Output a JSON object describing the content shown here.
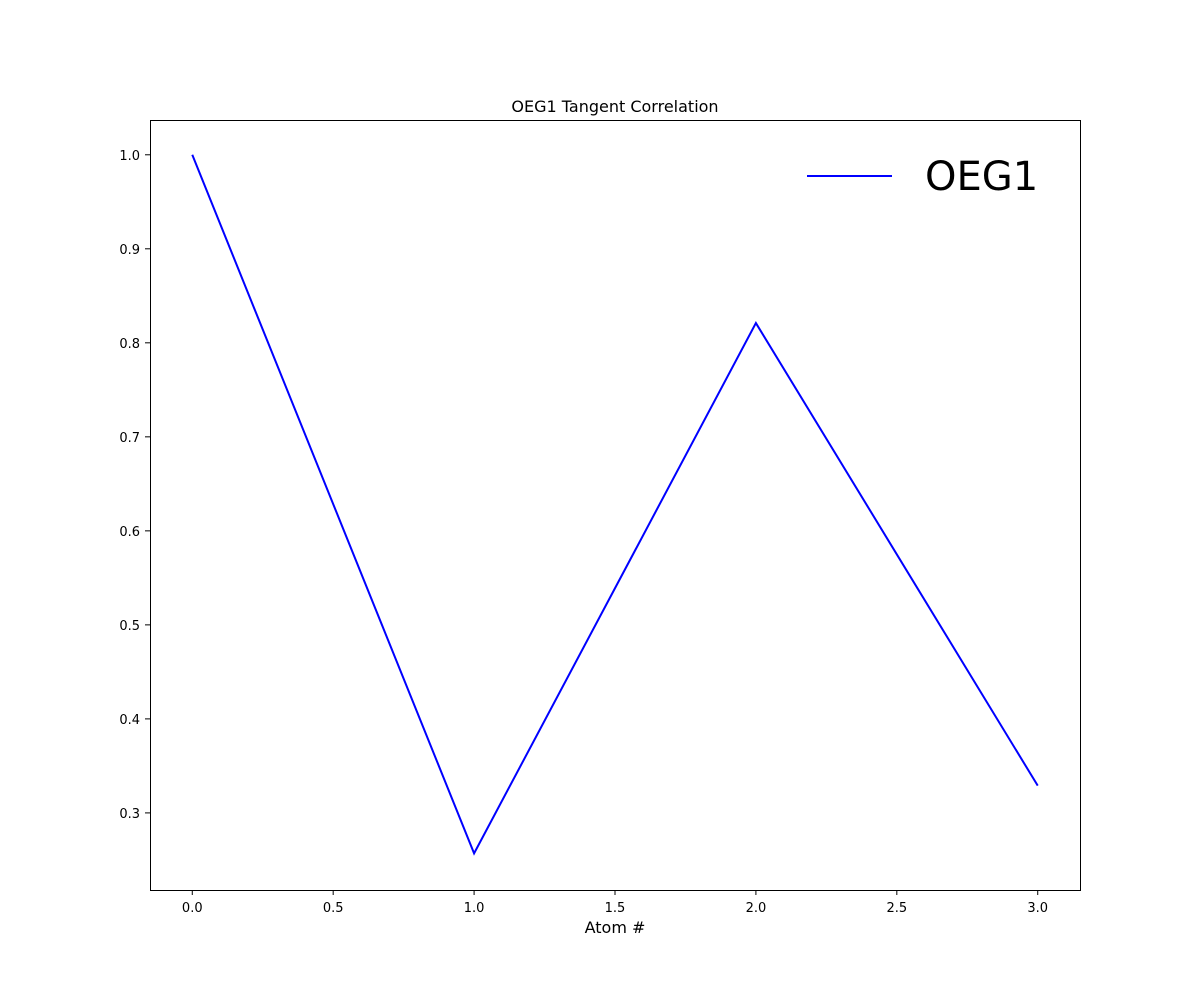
{
  "chart_data": {
    "type": "line",
    "title": "OEG1 Tangent Correlation",
    "xlabel": "Atom #",
    "ylabel": "",
    "xlim": [
      -0.15,
      3.15
    ],
    "ylim": [
      0.218,
      1.037
    ],
    "xticks": [
      0.0,
      0.5,
      1.0,
      1.5,
      2.0,
      2.5,
      3.0
    ],
    "xtick_labels": [
      "0.0",
      "0.5",
      "1.0",
      "1.5",
      "2.0",
      "2.5",
      "3.0"
    ],
    "yticks": [
      0.3,
      0.4,
      0.5,
      0.6,
      0.7,
      0.8,
      0.9,
      1.0
    ],
    "ytick_labels": [
      "0.3",
      "0.4",
      "0.5",
      "0.6",
      "0.7",
      "0.8",
      "0.9",
      "1.0"
    ],
    "grid": false,
    "legend_position": "top-right",
    "series": [
      {
        "name": "OEG1",
        "color": "#0000ff",
        "x": [
          0,
          1,
          2,
          3
        ],
        "y": [
          1.0,
          0.257,
          0.821,
          0.329
        ]
      }
    ]
  }
}
